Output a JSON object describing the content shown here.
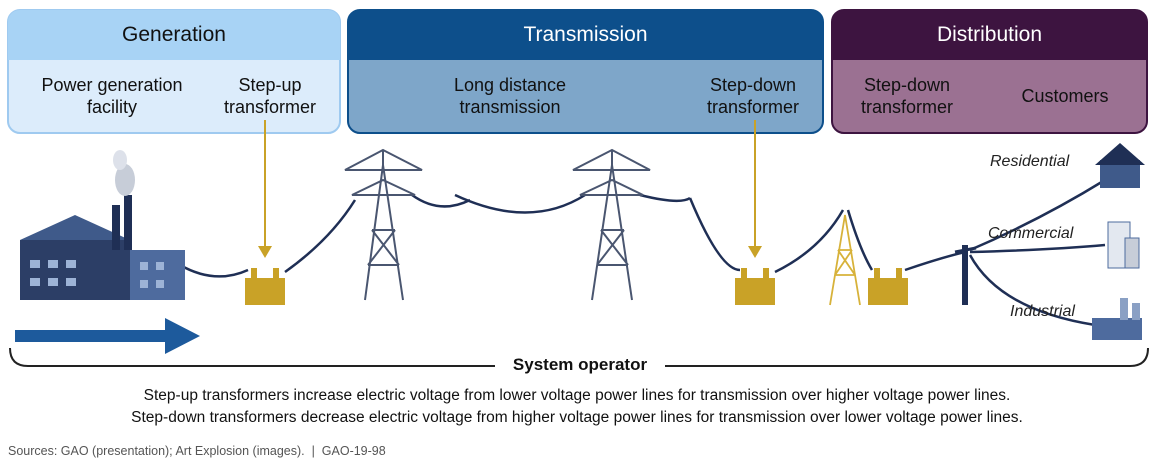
{
  "sections": [
    {
      "title": "Generation",
      "items": [
        "Power generation facility",
        "Step-up transformer"
      ]
    },
    {
      "title": "Transmission",
      "items": [
        "Long distance transmission",
        "Step-down transformer"
      ]
    },
    {
      "title": "Distribution",
      "items": [
        "Step-down transformer",
        "Customers"
      ]
    }
  ],
  "customers": [
    "Residential",
    "Commercial",
    "Industrial"
  ],
  "system_operator": "System operator",
  "notes": [
    "Step-up transformers increase electric voltage from lower voltage power lines for transmission over higher voltage power lines.",
    "Step-down transformers decrease electric voltage from higher voltage power lines for transmission over lower voltage power lines."
  ],
  "source": "Sources: GAO (presentation); Art Explosion (images).  |  GAO-19-98"
}
